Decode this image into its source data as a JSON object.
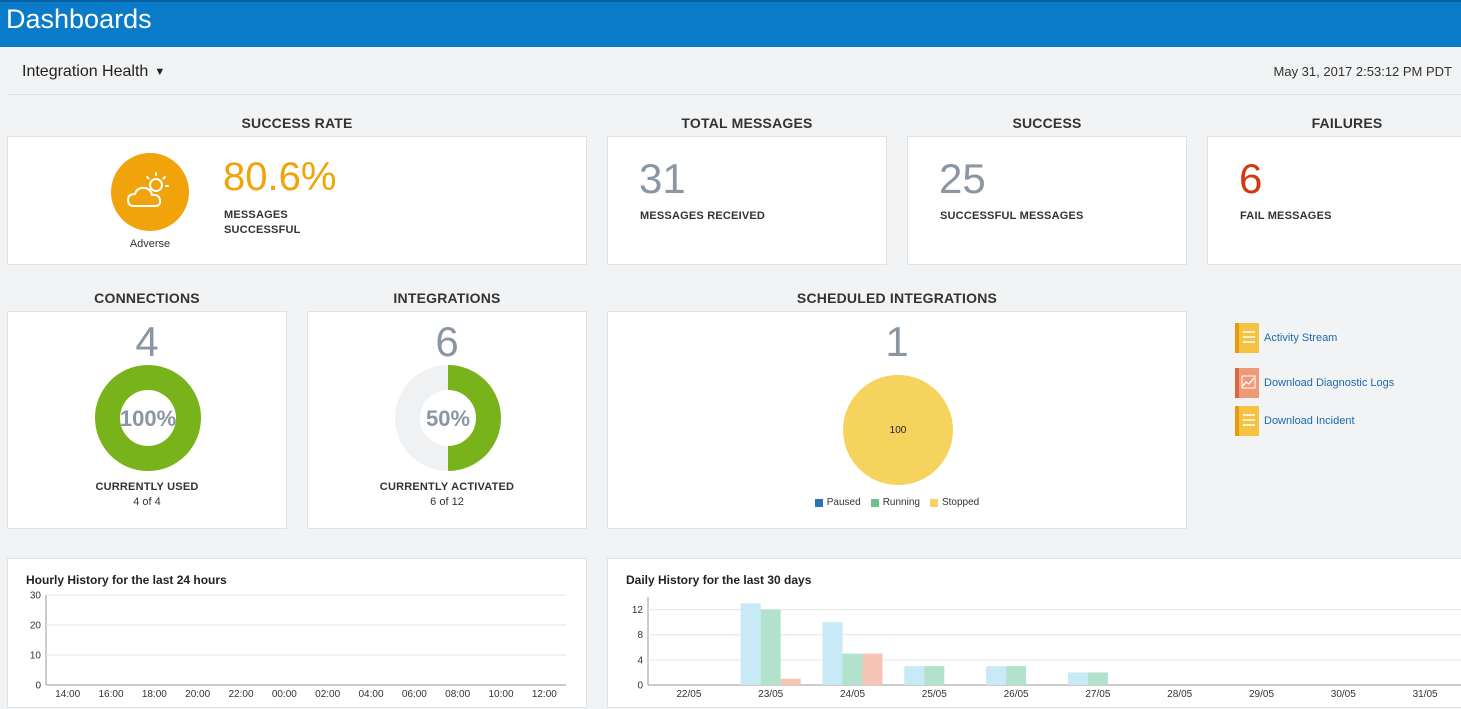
{
  "header": {
    "title": "Dashboards"
  },
  "toolbar": {
    "view_selector": "Integration Health",
    "timestamp": "May 31, 2017 2:53:12 PM PDT"
  },
  "success_rate": {
    "title": "SUCCESS RATE",
    "value": "80.6%",
    "caption_line1": "MESSAGES",
    "caption_line2": "SUCCESSFUL",
    "status": "Adverse",
    "icon": "partly-cloudy-icon",
    "accent": "#f0a30a"
  },
  "total_messages": {
    "title": "TOTAL MESSAGES",
    "value": "31",
    "caption": "MESSAGES RECEIVED"
  },
  "success": {
    "title": "SUCCESS",
    "value": "25",
    "caption": "SUCCESSFUL MESSAGES"
  },
  "failures": {
    "title": "FAILURES",
    "value": "6",
    "caption": "FAIL MESSAGES",
    "color": "#d03a12"
  },
  "connections": {
    "title": "CONNECTIONS",
    "value": "4",
    "percent_label": "100%",
    "fraction": 1.0,
    "caption": "CURRENTLY USED",
    "sub": "4 of 4"
  },
  "integrations": {
    "title": "INTEGRATIONS",
    "value": "6",
    "percent_label": "50%",
    "fraction": 0.5,
    "caption": "CURRENTLY ACTIVATED",
    "sub": "6 of 12"
  },
  "scheduled": {
    "title": "SCHEDULED INTEGRATIONS",
    "value": "1",
    "pie_label": "100",
    "legend": [
      {
        "name": "Paused",
        "color": "#2a73b8"
      },
      {
        "name": "Running",
        "color": "#6cc288"
      },
      {
        "name": "Stopped",
        "color": "#f6d35c"
      }
    ]
  },
  "links": [
    {
      "label": "Activity Stream",
      "icon": "document-icon"
    },
    {
      "label": "Download Diagnostic Logs",
      "icon": "chart-document-icon"
    },
    {
      "label": "Download Incident",
      "icon": "document-icon"
    }
  ],
  "colors": {
    "donut_green": "#78b31b",
    "donut_track": "#f0f1f2",
    "header_blue": "#0a7bc8"
  },
  "chart_data": [
    {
      "type": "bar",
      "title": "Hourly History for the last 24 hours",
      "categories": [
        "14:00",
        "16:00",
        "18:00",
        "20:00",
        "22:00",
        "00:00",
        "02:00",
        "04:00",
        "06:00",
        "08:00",
        "10:00",
        "12:00"
      ],
      "yticks": [
        "0",
        "10",
        "20",
        "30"
      ],
      "ylim": [
        0,
        30
      ],
      "series": []
    },
    {
      "type": "bar",
      "title": "Daily History for the last 30 days",
      "categories": [
        "22/05",
        "23/05",
        "24/05",
        "25/05",
        "26/05",
        "27/05",
        "28/05",
        "29/05",
        "30/05",
        "31/05"
      ],
      "yticks": [
        "0",
        "4",
        "8",
        "12"
      ],
      "ylim": [
        0,
        14
      ],
      "series": [
        {
          "color": "#c8e9f6",
          "values": [
            0,
            13,
            10,
            3,
            3,
            2,
            0,
            0,
            0,
            0
          ]
        },
        {
          "color": "#b3e2cc",
          "values": [
            0,
            12,
            5,
            3,
            3,
            2,
            0,
            0,
            0,
            0
          ]
        },
        {
          "color": "#f6c4b4",
          "values": [
            0,
            1,
            5,
            0,
            0,
            0,
            0,
            0,
            0,
            0
          ]
        }
      ]
    }
  ]
}
